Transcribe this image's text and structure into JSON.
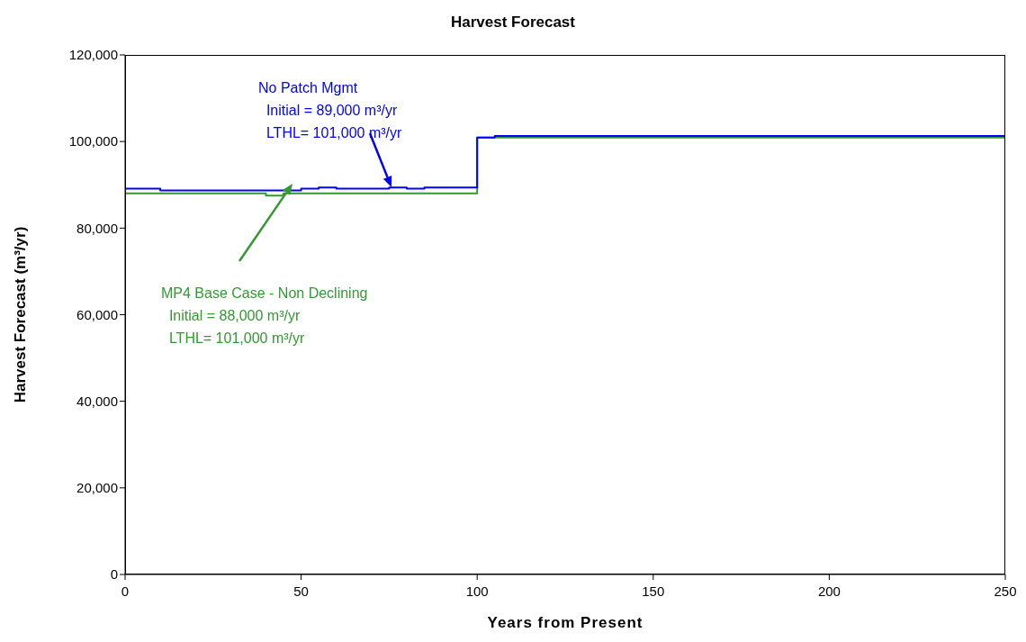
{
  "chart_data": {
    "type": "step",
    "title": "Harvest Forecast",
    "xlabel": "Years from Present",
    "ylabel": "Harvest Forecast (m³/yr)",
    "xlim": [
      0,
      250
    ],
    "xticks": [
      0,
      50,
      100,
      150,
      200,
      250
    ],
    "ylim": [
      0,
      120000
    ],
    "yticks": [
      {
        "value": 0,
        "label": "0"
      },
      {
        "value": 20000,
        "label": "20,000"
      },
      {
        "value": 40000,
        "label": "40,000"
      },
      {
        "value": 60000,
        "label": "60,000"
      },
      {
        "value": 80000,
        "label": "80,000"
      },
      {
        "value": 100000,
        "label": "100,000"
      },
      {
        "value": 120000,
        "label": "120,000"
      }
    ],
    "grid": false,
    "legend": false,
    "marker": "none",
    "line_style": "solid",
    "series": [
      {
        "color": "#0000ff",
        "x": [
          0,
          10,
          50,
          55,
          60,
          75,
          80,
          85,
          100,
          105,
          250
        ],
        "values": [
          89100,
          88700,
          89100,
          89400,
          89100,
          89400,
          89100,
          89400,
          100900,
          101300,
          101300
        ]
      },
      {
        "color": "#339933",
        "x": [
          0,
          40,
          45,
          100,
          250
        ],
        "values": [
          88000,
          87500,
          88000,
          100900,
          100900
        ]
      }
    ],
    "annotations": [
      "No Patch Mgmt\n  Initial = 89,000 m³/yr\n  LTHL= 101,000 m³/yr",
      "MP4 Base Case - Non Declining\n  Initial = 88,000 m³/yr\n  LTHL= 101,000 m³/yr"
    ]
  }
}
